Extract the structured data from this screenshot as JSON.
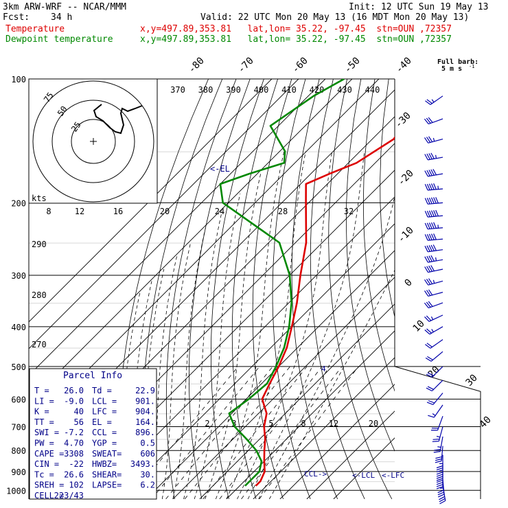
{
  "header": {
    "model": "3km ARW-WRF -- NCAR/MMM",
    "init": "Init: 12 UTC Sun 19 May 13",
    "fcst_label": "Fcst:",
    "fcst_value": "34 h",
    "valid": "Valid: 22 UTC Mon 20 May 13 (16 MDT Mon 20 May 13)",
    "temp_label": "Temperature",
    "temp_loc": "x,y=497.89,353.81   lat,lon= 35.22, -97.45  stn=OUN ,72357",
    "dew_label": "Dewpoint temperature",
    "dew_loc": "x,y=497.89,353.81   lat,lon= 35.22, -97.45  stn=OUN ,72357",
    "barb_note_1": "Full barb:",
    "barb_note_2": "5 m s",
    "barb_note_sup": "-1"
  },
  "colors": {
    "temperature": "#dd0000",
    "dewpoint": "#008800",
    "grid": "#000000",
    "barb": "#0000aa",
    "parcel_text": "#000088"
  },
  "chart_data": {
    "type": "line",
    "title": "",
    "xlabel": "",
    "ylabel": "",
    "pressure_ticks": [
      "100",
      "200",
      "300",
      "400",
      "500",
      "600",
      "700",
      "800",
      "900",
      "1000"
    ],
    "isotherm_labels": [
      "-80",
      "-70",
      "-60",
      "-50",
      "-40",
      "-30",
      "-20",
      "-10",
      "0",
      "10",
      "20",
      "30",
      "40"
    ],
    "theta_labels": [
      "370",
      "380",
      "390",
      "400",
      "410",
      "420",
      "430",
      "440"
    ],
    "dry_adiabat_labels": [
      "290",
      "280",
      "270"
    ],
    "mixing_ratio_labels": [
      "2",
      "3",
      "5",
      "8",
      "12",
      "20"
    ],
    "mixing_ratio_upper_labels": [
      "8",
      "12",
      "16",
      "20",
      "24",
      "28",
      "32"
    ],
    "hodograph": {
      "units_label": "kts",
      "rings": [
        "25",
        "50",
        "75"
      ]
    },
    "level_markers": {
      "el": "<-EL",
      "ccl": "CCL->",
      "lcl": "<-LCL",
      "lfc": "<-LFC",
      "small_mark": "4"
    },
    "series": [
      {
        "name": "Temperature",
        "color": "#dd0000",
        "points": [
          {
            "p": 100,
            "t": -66
          },
          {
            "p": 120,
            "t": -55
          },
          {
            "p": 140,
            "t": -52
          },
          {
            "p": 160,
            "t": -57
          },
          {
            "p": 170,
            "t": -63
          },
          {
            "p": 180,
            "t": -68
          },
          {
            "p": 200,
            "t": -61
          },
          {
            "p": 250,
            "t": -46
          },
          {
            "p": 300,
            "t": -36
          },
          {
            "p": 350,
            "t": -27
          },
          {
            "p": 400,
            "t": -20
          },
          {
            "p": 450,
            "t": -14
          },
          {
            "p": 500,
            "t": -10
          },
          {
            "p": 550,
            "t": -7
          },
          {
            "p": 600,
            "t": -4
          },
          {
            "p": 650,
            "t": 3
          },
          {
            "p": 700,
            "t": 7
          },
          {
            "p": 750,
            "t": 12
          },
          {
            "p": 800,
            "t": 16
          },
          {
            "p": 850,
            "t": 20
          },
          {
            "p": 900,
            "t": 24
          },
          {
            "p": 950,
            "t": 26
          },
          {
            "p": 975,
            "t": 26
          }
        ]
      },
      {
        "name": "Dewpoint temperature",
        "color": "#008800",
        "points": [
          {
            "p": 100,
            "t": -93
          },
          {
            "p": 110,
            "t": -98
          },
          {
            "p": 130,
            "t": -103
          },
          {
            "p": 150,
            "t": -88
          },
          {
            "p": 160,
            "t": -84
          },
          {
            "p": 170,
            "t": -93
          },
          {
            "p": 180,
            "t": -100
          },
          {
            "p": 200,
            "t": -92
          },
          {
            "p": 250,
            "t": -56
          },
          {
            "p": 300,
            "t": -40
          },
          {
            "p": 350,
            "t": -29
          },
          {
            "p": 400,
            "t": -21
          },
          {
            "p": 450,
            "t": -15
          },
          {
            "p": 500,
            "t": -11
          },
          {
            "p": 550,
            "t": -8
          },
          {
            "p": 600,
            "t": -9
          },
          {
            "p": 650,
            "t": -11
          },
          {
            "p": 700,
            "t": -4
          },
          {
            "p": 750,
            "t": 5
          },
          {
            "p": 800,
            "t": 13
          },
          {
            "p": 850,
            "t": 19
          },
          {
            "p": 900,
            "t": 22
          },
          {
            "p": 950,
            "t": 22
          },
          {
            "p": 975,
            "t": 22
          }
        ]
      }
    ],
    "wind_barbs": [
      {
        "p": 110,
        "dir": 235,
        "spd": 5
      },
      {
        "p": 125,
        "dir": 250,
        "spd": 6
      },
      {
        "p": 140,
        "dir": 255,
        "spd": 7
      },
      {
        "p": 155,
        "dir": 260,
        "spd": 9
      },
      {
        "p": 170,
        "dir": 260,
        "spd": 10
      },
      {
        "p": 185,
        "dir": 265,
        "spd": 11
      },
      {
        "p": 200,
        "dir": 265,
        "spd": 12
      },
      {
        "p": 215,
        "dir": 265,
        "spd": 12
      },
      {
        "p": 230,
        "dir": 265,
        "spd": 11
      },
      {
        "p": 245,
        "dir": 265,
        "spd": 10
      },
      {
        "p": 260,
        "dir": 262,
        "spd": 10
      },
      {
        "p": 275,
        "dir": 260,
        "spd": 9
      },
      {
        "p": 290,
        "dir": 258,
        "spd": 8
      },
      {
        "p": 310,
        "dir": 255,
        "spd": 7
      },
      {
        "p": 330,
        "dir": 255,
        "spd": 6
      },
      {
        "p": 350,
        "dir": 250,
        "spd": 6
      },
      {
        "p": 375,
        "dir": 245,
        "spd": 5
      },
      {
        "p": 400,
        "dir": 240,
        "spd": 5
      },
      {
        "p": 430,
        "dir": 235,
        "spd": 4
      },
      {
        "p": 460,
        "dir": 230,
        "spd": 4
      },
      {
        "p": 500,
        "dir": 225,
        "spd": 4
      },
      {
        "p": 540,
        "dir": 225,
        "spd": 4
      },
      {
        "p": 580,
        "dir": 220,
        "spd": 4
      },
      {
        "p": 620,
        "dir": 215,
        "spd": 3
      },
      {
        "p": 660,
        "dir": 200,
        "spd": 4
      },
      {
        "p": 700,
        "dir": 195,
        "spd": 5
      },
      {
        "p": 740,
        "dir": 190,
        "spd": 5
      },
      {
        "p": 780,
        "dir": 185,
        "spd": 6
      },
      {
        "p": 820,
        "dir": 180,
        "spd": 7
      },
      {
        "p": 860,
        "dir": 180,
        "spd": 8
      },
      {
        "p": 900,
        "dir": 180,
        "spd": 8
      },
      {
        "p": 940,
        "dir": 175,
        "spd": 7
      },
      {
        "p": 975,
        "dir": 170,
        "spd": 6
      }
    ]
  },
  "parcel_info": {
    "title": "Parcel Info",
    "rows": [
      [
        "T  =",
        "26.0",
        "Td =",
        "22.9"
      ],
      [
        "LI =",
        "-9.0",
        "LCL =",
        "901."
      ],
      [
        "K  =",
        "40",
        "LFC =",
        "904."
      ],
      [
        "TT =",
        "56",
        "EL  =",
        "164."
      ],
      [
        "SWI =",
        "-7.2",
        "CCL =",
        "896."
      ],
      [
        "PW  =",
        "4.70",
        "YGP =",
        "0.5"
      ],
      [
        "CAPE =",
        "3308",
        "SWEAT=",
        "606"
      ],
      [
        "CIN  =",
        "-22",
        "HWBZ=",
        "3493."
      ],
      [
        "Tc  =",
        "26.6",
        "SHEAR=",
        "30."
      ],
      [
        "SREH =",
        "102",
        "LAPSE=",
        "6.2"
      ],
      [
        "CELL =",
        "223/43",
        "",
        ""
      ]
    ]
  }
}
